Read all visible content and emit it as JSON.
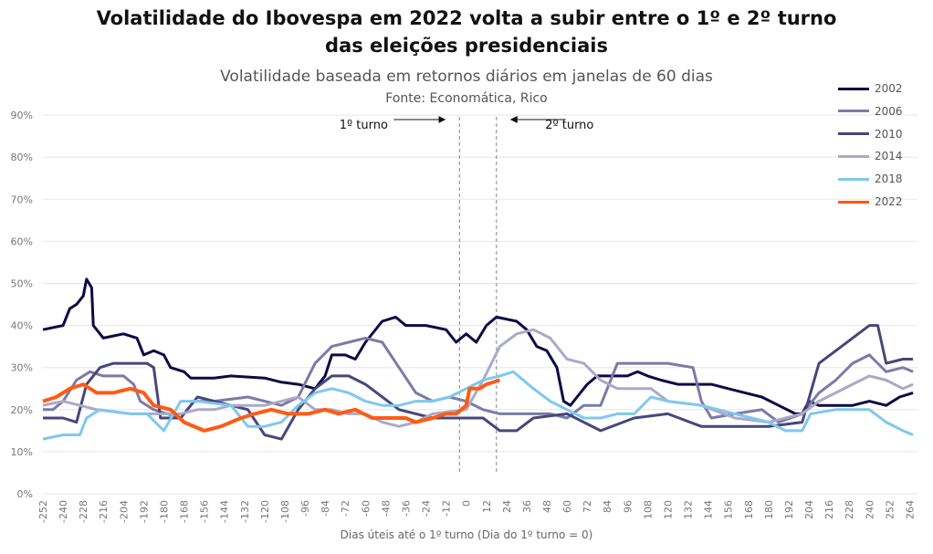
{
  "chart_data": {
    "type": "line",
    "title": "Volatilidade do Ibovespa em 2022 volta a subir entre o 1º e 2º turno das eleições presidenciais",
    "title_lines": [
      "Volatilidade do Ibovespa em 2022 volta a subir entre o 1º e 2º turno",
      "das eleições presidenciais"
    ],
    "subtitle": "Volatilidade baseada em retornos diários em janelas de 60 dias",
    "source": "Fonte: Economática, Rico",
    "xlabel": "Dias úteis até o 1º turno (Dia do 1º turno = 0)",
    "ylabel": "",
    "xlim": [
      -252,
      268
    ],
    "ylim": [
      0,
      90
    ],
    "x_ticks": [
      -252,
      -240,
      -228,
      -216,
      -204,
      -192,
      -180,
      -168,
      -156,
      -144,
      -132,
      -120,
      -108,
      -96,
      -84,
      -72,
      -60,
      -48,
      -36,
      -24,
      -12,
      0,
      12,
      24,
      36,
      48,
      60,
      72,
      84,
      96,
      108,
      120,
      132,
      144,
      156,
      168,
      180,
      192,
      204,
      216,
      228,
      240,
      252,
      264
    ],
    "y_ticks": [
      "0%",
      "10%",
      "20%",
      "30%",
      "40%",
      "50%",
      "60%",
      "70%",
      "80%",
      "90%"
    ],
    "grid": true,
    "legend_position": "top-right",
    "annotations": [
      {
        "text": "1º turno",
        "arrow": "right",
        "x": -4
      },
      {
        "text": "2º turno",
        "arrow": "left",
        "x": 18
      }
    ],
    "series": [
      {
        "name": "2002",
        "color": "#0d0b45",
        "points": [
          [
            -252,
            39
          ],
          [
            -240,
            40
          ],
          [
            -236,
            44
          ],
          [
            -232,
            45
          ],
          [
            -228,
            47
          ],
          [
            -226,
            51
          ],
          [
            -223,
            49
          ],
          [
            -222,
            40
          ],
          [
            -216,
            37
          ],
          [
            -204,
            38
          ],
          [
            -196,
            37
          ],
          [
            -192,
            33
          ],
          [
            -186,
            34
          ],
          [
            -180,
            33
          ],
          [
            -176,
            30
          ],
          [
            -168,
            29
          ],
          [
            -164,
            27.5
          ],
          [
            -150,
            27.5
          ],
          [
            -140,
            28
          ],
          [
            -120,
            27.5
          ],
          [
            -110,
            26.5
          ],
          [
            -100,
            26
          ],
          [
            -90,
            25
          ],
          [
            -84,
            28
          ],
          [
            -80,
            33
          ],
          [
            -72,
            33
          ],
          [
            -66,
            32
          ],
          [
            -60,
            36
          ],
          [
            -50,
            41
          ],
          [
            -42,
            42
          ],
          [
            -36,
            40
          ],
          [
            -24,
            40
          ],
          [
            -12,
            39
          ],
          [
            -6,
            36
          ],
          [
            0,
            38
          ],
          [
            6,
            36
          ],
          [
            12,
            40
          ],
          [
            18,
            42
          ],
          [
            30,
            41
          ],
          [
            36,
            39
          ],
          [
            42,
            35
          ],
          [
            48,
            34
          ],
          [
            54,
            30
          ],
          [
            58,
            22
          ],
          [
            62,
            21
          ],
          [
            66,
            23
          ],
          [
            72,
            26
          ],
          [
            78,
            28
          ],
          [
            90,
            28
          ],
          [
            96,
            28
          ],
          [
            102,
            29
          ],
          [
            108,
            28
          ],
          [
            116,
            27
          ],
          [
            126,
            26
          ],
          [
            136,
            26
          ],
          [
            146,
            26
          ],
          [
            156,
            25
          ],
          [
            166,
            24
          ],
          [
            176,
            23
          ],
          [
            186,
            21
          ],
          [
            196,
            19
          ],
          [
            200,
            19
          ],
          [
            204,
            22
          ],
          [
            210,
            21
          ],
          [
            220,
            21
          ],
          [
            230,
            21
          ],
          [
            240,
            22
          ],
          [
            250,
            21
          ],
          [
            258,
            23
          ],
          [
            266,
            24
          ]
        ]
      },
      {
        "name": "2006",
        "color": "#7b7aa8",
        "points": [
          [
            -252,
            20
          ],
          [
            -246,
            20
          ],
          [
            -240,
            22
          ],
          [
            -232,
            27
          ],
          [
            -224,
            29
          ],
          [
            -216,
            28
          ],
          [
            -204,
            28
          ],
          [
            -198,
            26
          ],
          [
            -194,
            22
          ],
          [
            -186,
            20
          ],
          [
            -170,
            18
          ],
          [
            -162,
            22
          ],
          [
            -150,
            22
          ],
          [
            -130,
            23
          ],
          [
            -120,
            22
          ],
          [
            -110,
            21
          ],
          [
            -100,
            23
          ],
          [
            -90,
            31
          ],
          [
            -80,
            35
          ],
          [
            -70,
            36
          ],
          [
            -60,
            37
          ],
          [
            -50,
            36
          ],
          [
            -40,
            30
          ],
          [
            -30,
            24
          ],
          [
            -20,
            22
          ],
          [
            -10,
            23
          ],
          [
            0,
            22
          ],
          [
            10,
            20
          ],
          [
            20,
            19
          ],
          [
            40,
            19
          ],
          [
            50,
            19
          ],
          [
            60,
            18
          ],
          [
            70,
            21
          ],
          [
            80,
            21
          ],
          [
            90,
            31
          ],
          [
            110,
            31
          ],
          [
            120,
            31
          ],
          [
            135,
            30
          ],
          [
            140,
            22
          ],
          [
            146,
            18
          ],
          [
            160,
            19
          ],
          [
            176,
            20
          ],
          [
            186,
            17
          ],
          [
            200,
            19
          ],
          [
            210,
            24
          ],
          [
            220,
            27
          ],
          [
            230,
            31
          ],
          [
            240,
            33
          ],
          [
            250,
            29
          ],
          [
            260,
            30
          ],
          [
            266,
            29
          ]
        ]
      },
      {
        "name": "2010",
        "color": "#47477c",
        "points": [
          [
            -252,
            18
          ],
          [
            -240,
            18
          ],
          [
            -232,
            17
          ],
          [
            -226,
            26
          ],
          [
            -218,
            30
          ],
          [
            -210,
            31
          ],
          [
            -190,
            31
          ],
          [
            -186,
            30
          ],
          [
            -182,
            18
          ],
          [
            -170,
            18
          ],
          [
            -160,
            23
          ],
          [
            -150,
            22
          ],
          [
            -140,
            21
          ],
          [
            -130,
            20
          ],
          [
            -120,
            14
          ],
          [
            -110,
            13
          ],
          [
            -100,
            20
          ],
          [
            -90,
            25
          ],
          [
            -80,
            28
          ],
          [
            -70,
            28
          ],
          [
            -60,
            26
          ],
          [
            -40,
            20
          ],
          [
            -20,
            18
          ],
          [
            0,
            18
          ],
          [
            10,
            18
          ],
          [
            20,
            15
          ],
          [
            30,
            15
          ],
          [
            40,
            18
          ],
          [
            60,
            19
          ],
          [
            70,
            17
          ],
          [
            80,
            15
          ],
          [
            100,
            18
          ],
          [
            120,
            19
          ],
          [
            140,
            16
          ],
          [
            160,
            16
          ],
          [
            180,
            16
          ],
          [
            200,
            17
          ],
          [
            210,
            31
          ],
          [
            220,
            34
          ],
          [
            240,
            40
          ],
          [
            245,
            40
          ],
          [
            250,
            31
          ],
          [
            260,
            32
          ],
          [
            266,
            32
          ]
        ]
      },
      {
        "name": "2014",
        "color": "#aaa9c9",
        "points": [
          [
            -252,
            21
          ],
          [
            -240,
            22
          ],
          [
            -230,
            21
          ],
          [
            -220,
            20
          ],
          [
            -200,
            19
          ],
          [
            -180,
            19
          ],
          [
            -170,
            19
          ],
          [
            -160,
            20
          ],
          [
            -150,
            20
          ],
          [
            -140,
            21
          ],
          [
            -120,
            21
          ],
          [
            -100,
            23
          ],
          [
            -90,
            20
          ],
          [
            -80,
            20
          ],
          [
            -70,
            19
          ],
          [
            -60,
            19
          ],
          [
            -50,
            17
          ],
          [
            -40,
            16
          ],
          [
            -30,
            17
          ],
          [
            -20,
            19
          ],
          [
            0,
            20
          ],
          [
            10,
            27
          ],
          [
            20,
            35
          ],
          [
            30,
            38
          ],
          [
            40,
            39
          ],
          [
            50,
            37
          ],
          [
            60,
            32
          ],
          [
            70,
            31
          ],
          [
            80,
            27
          ],
          [
            90,
            25
          ],
          [
            100,
            25
          ],
          [
            110,
            25
          ],
          [
            120,
            22
          ],
          [
            140,
            21
          ],
          [
            160,
            18
          ],
          [
            180,
            17
          ],
          [
            200,
            19
          ],
          [
            210,
            22
          ],
          [
            220,
            24
          ],
          [
            230,
            26
          ],
          [
            240,
            28
          ],
          [
            250,
            27
          ],
          [
            260,
            25
          ],
          [
            266,
            26
          ]
        ]
      },
      {
        "name": "2018",
        "color": "#7fc8ee",
        "points": [
          [
            -252,
            13
          ],
          [
            -240,
            14
          ],
          [
            -230,
            14
          ],
          [
            -226,
            18
          ],
          [
            -218,
            20
          ],
          [
            -200,
            19
          ],
          [
            -190,
            19
          ],
          [
            -180,
            15
          ],
          [
            -170,
            22
          ],
          [
            -160,
            22
          ],
          [
            -140,
            21
          ],
          [
            -130,
            16
          ],
          [
            -120,
            16
          ],
          [
            -110,
            17
          ],
          [
            -100,
            21
          ],
          [
            -90,
            24
          ],
          [
            -80,
            25
          ],
          [
            -70,
            24
          ],
          [
            -60,
            22
          ],
          [
            -50,
            21
          ],
          [
            -40,
            21
          ],
          [
            -30,
            22
          ],
          [
            -20,
            22
          ],
          [
            -10,
            23
          ],
          [
            0,
            25
          ],
          [
            10,
            27
          ],
          [
            20,
            28
          ],
          [
            28,
            29
          ],
          [
            40,
            25
          ],
          [
            50,
            22
          ],
          [
            60,
            20
          ],
          [
            70,
            18
          ],
          [
            80,
            18
          ],
          [
            90,
            19
          ],
          [
            100,
            19
          ],
          [
            110,
            23
          ],
          [
            120,
            22
          ],
          [
            140,
            21
          ],
          [
            150,
            20
          ],
          [
            160,
            19
          ],
          [
            170,
            18
          ],
          [
            180,
            17
          ],
          [
            190,
            15
          ],
          [
            200,
            15
          ],
          [
            205,
            19
          ],
          [
            220,
            20
          ],
          [
            240,
            20
          ],
          [
            250,
            17
          ],
          [
            260,
            15
          ],
          [
            266,
            14
          ]
        ]
      },
      {
        "name": "2022",
        "color": "#ff5a14",
        "points": [
          [
            -252,
            22
          ],
          [
            -244,
            23
          ],
          [
            -236,
            25
          ],
          [
            -228,
            26
          ],
          [
            -220,
            24
          ],
          [
            -210,
            24
          ],
          [
            -200,
            25
          ],
          [
            -192,
            24
          ],
          [
            -186,
            21
          ],
          [
            -176,
            20
          ],
          [
            -168,
            17
          ],
          [
            -156,
            15
          ],
          [
            -146,
            16
          ],
          [
            -134,
            18
          ],
          [
            -126,
            19
          ],
          [
            -116,
            20
          ],
          [
            -106,
            19
          ],
          [
            -94,
            19
          ],
          [
            -84,
            20
          ],
          [
            -76,
            19
          ],
          [
            -66,
            20
          ],
          [
            -56,
            18
          ],
          [
            -46,
            18
          ],
          [
            -36,
            18
          ],
          [
            -30,
            17
          ],
          [
            -20,
            18
          ],
          [
            -12,
            19
          ],
          [
            -6,
            19
          ],
          [
            0,
            21
          ],
          [
            2,
            25
          ],
          [
            8,
            25
          ],
          [
            12,
            26
          ],
          [
            20,
            27
          ]
        ]
      }
    ]
  }
}
